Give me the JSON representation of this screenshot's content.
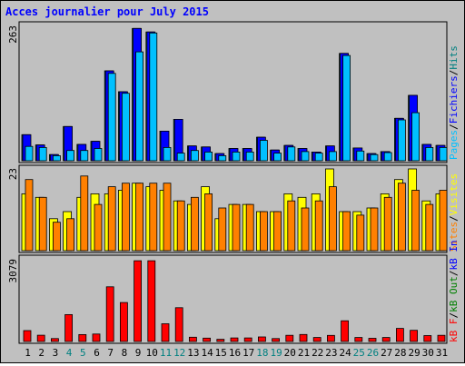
{
  "title": "Acces journalier pour July 2015",
  "colors": {
    "title": "#0000ff",
    "background": "#c0c0c0",
    "hits": "#008080",
    "files": "#0000ff",
    "pages": "#00c0ff",
    "visits": "#ffff00",
    "sites": "#ff8000",
    "kb_in": "#0000ff",
    "kb_out": "#008000",
    "kb_f": "#ff0000",
    "weekend_label": "#008080",
    "weekday_label": "#000000"
  },
  "legend_top": {
    "pages": "Pages",
    "files": "Fichiers",
    "hits": "Hits"
  },
  "legend_mid": {
    "visits": "Visites",
    "sites": "Sites"
  },
  "legend_bot": {
    "kbin": "kB In",
    "kbout": "kB Out",
    "kbf": "kB F"
  },
  "sep": "/",
  "chart_data": {
    "type": "bar",
    "title": "Acces journalier pour July 2015",
    "categories": [
      "1",
      "2",
      "3",
      "4",
      "5",
      "6",
      "7",
      "8",
      "9",
      "10",
      "11",
      "12",
      "13",
      "14",
      "15",
      "16",
      "17",
      "18",
      "19",
      "20",
      "21",
      "22",
      "23",
      "24",
      "25",
      "26",
      "27",
      "28",
      "29",
      "30",
      "31"
    ],
    "weekend_days": [
      "4",
      "5",
      "11",
      "12",
      "18",
      "19",
      "25",
      "26"
    ],
    "panels": [
      {
        "name": "hits_files_pages",
        "ymax_label": "263",
        "ylim": [
          0,
          263
        ],
        "series": [
          {
            "name": "Hits",
            "values": [
              51,
              31,
              12,
              67,
              32,
              38,
              176,
              135,
              259,
              252,
              58,
              81,
              29,
              27,
              14,
              24,
              24,
              46,
              21,
              30,
              24,
              17,
              29,
              210,
              25,
              14,
              18,
              83,
              128,
              32,
              30
            ]
          },
          {
            "name": "Fichiers",
            "values": [
              51,
              31,
              12,
              67,
              32,
              38,
              176,
              135,
              259,
              252,
              58,
              81,
              29,
              27,
              14,
              24,
              24,
              46,
              21,
              30,
              24,
              17,
              29,
              210,
              25,
              14,
              18,
              83,
              128,
              32,
              30
            ]
          },
          {
            "name": "Pages",
            "values": [
              28,
              26,
              10,
              20,
              20,
              24,
              171,
              132,
              213,
              250,
              26,
              15,
              20,
              17,
              10,
              17,
              17,
              40,
              15,
              27,
              18,
              15,
              18,
              206,
              19,
              12,
              16,
              80,
              94,
              26,
              26
            ]
          }
        ]
      },
      {
        "name": "visits_sites",
        "ymax_label": "23",
        "ylim": [
          0,
          23
        ],
        "series": [
          {
            "name": "Visites",
            "values": [
              16,
              15,
              9,
              11,
              15,
              16,
              16,
              17,
              19,
              18,
              17,
              14,
              13,
              18,
              9,
              13,
              13,
              11,
              11,
              16,
              15,
              16,
              23,
              11,
              11,
              12,
              16,
              20,
              23,
              14,
              16
            ]
          },
          {
            "name": "Sites",
            "values": [
              20,
              15,
              8,
              9,
              21,
              13,
              18,
              19,
              19,
              19,
              19,
              14,
              15,
              16,
              12,
              13,
              13,
              11,
              11,
              14,
              12,
              14,
              18,
              11,
              10,
              12,
              15,
              19,
              17,
              13,
              17
            ]
          }
        ]
      },
      {
        "name": "kb",
        "ymax_label": "3079",
        "ylim": [
          0,
          3079
        ],
        "series": [
          {
            "name": "kB F",
            "values": [
              411,
              237,
              111,
              1011,
              259,
              280,
              2059,
              1468,
              3040,
              3040,
              668,
              1273,
              160,
              127,
              82,
              135,
              135,
              171,
              110,
              234,
              262,
              149,
              230,
              781,
              149,
              121,
              150,
              491,
              421,
              221,
              234
            ]
          }
        ]
      }
    ]
  }
}
